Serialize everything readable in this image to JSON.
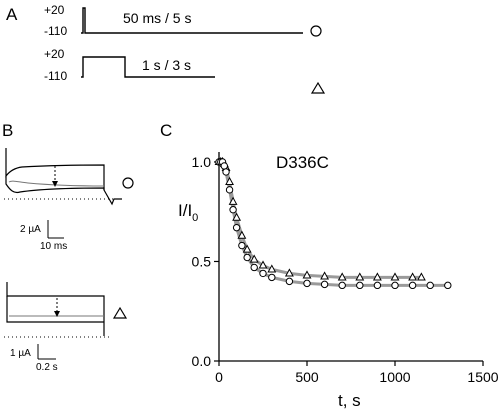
{
  "panel_a": {
    "letter": "A",
    "protocol_1": {
      "v_high": "+20",
      "v_low": "-110",
      "label": "50 ms / 5 s",
      "symbol": "○"
    },
    "protocol_2": {
      "v_high": "+20",
      "v_low": "-110",
      "label": "1 s / 3 s",
      "symbol": "△"
    }
  },
  "panel_b": {
    "letter": "B",
    "trace_1": {
      "scale_current": "2 µA",
      "scale_time": "10 ms",
      "symbol": "○"
    },
    "trace_2": {
      "scale_current": "1 µA",
      "scale_time": "0.2 s",
      "symbol": "△"
    }
  },
  "panel_c": {
    "letter": "C",
    "mutant_label": "D336C",
    "ylabel_main": "I/I",
    "ylabel_sub": "0",
    "xlabel": "t, s",
    "x_ticks": [
      "0",
      "500",
      "1000",
      "1500"
    ],
    "y_ticks": [
      "0.0",
      "0.5",
      "1.0"
    ]
  },
  "chart_data": {
    "type": "scatter",
    "title": "D336C",
    "xlabel": "t, s",
    "ylabel": "I/I0",
    "xlim": [
      0,
      1500
    ],
    "ylim": [
      0,
      1.05
    ],
    "series": [
      {
        "marker": "triangle",
        "color": "#000000",
        "x": [
          0,
          10,
          20,
          30,
          40,
          60,
          80,
          100,
          130,
          160,
          200,
          250,
          300,
          400,
          500,
          600,
          700,
          800,
          900,
          1000,
          1100,
          1150
        ],
        "y": [
          1.0,
          1.0,
          1.0,
          0.99,
          0.97,
          0.9,
          0.8,
          0.72,
          0.63,
          0.56,
          0.51,
          0.48,
          0.46,
          0.44,
          0.43,
          0.425,
          0.42,
          0.42,
          0.42,
          0.42,
          0.42,
          0.42
        ]
      },
      {
        "marker": "circle",
        "color": "#000000",
        "x": [
          0,
          10,
          20,
          30,
          40,
          60,
          80,
          100,
          130,
          160,
          200,
          250,
          300,
          400,
          500,
          600,
          700,
          800,
          900,
          1000,
          1100,
          1200,
          1300
        ],
        "y": [
          1.0,
          1.0,
          1.0,
          0.98,
          0.95,
          0.86,
          0.76,
          0.67,
          0.58,
          0.52,
          0.47,
          0.44,
          0.42,
          0.4,
          0.39,
          0.385,
          0.38,
          0.38,
          0.38,
          0.38,
          0.38,
          0.38,
          0.38
        ]
      }
    ],
    "fit_color": "#9a9a9a"
  }
}
